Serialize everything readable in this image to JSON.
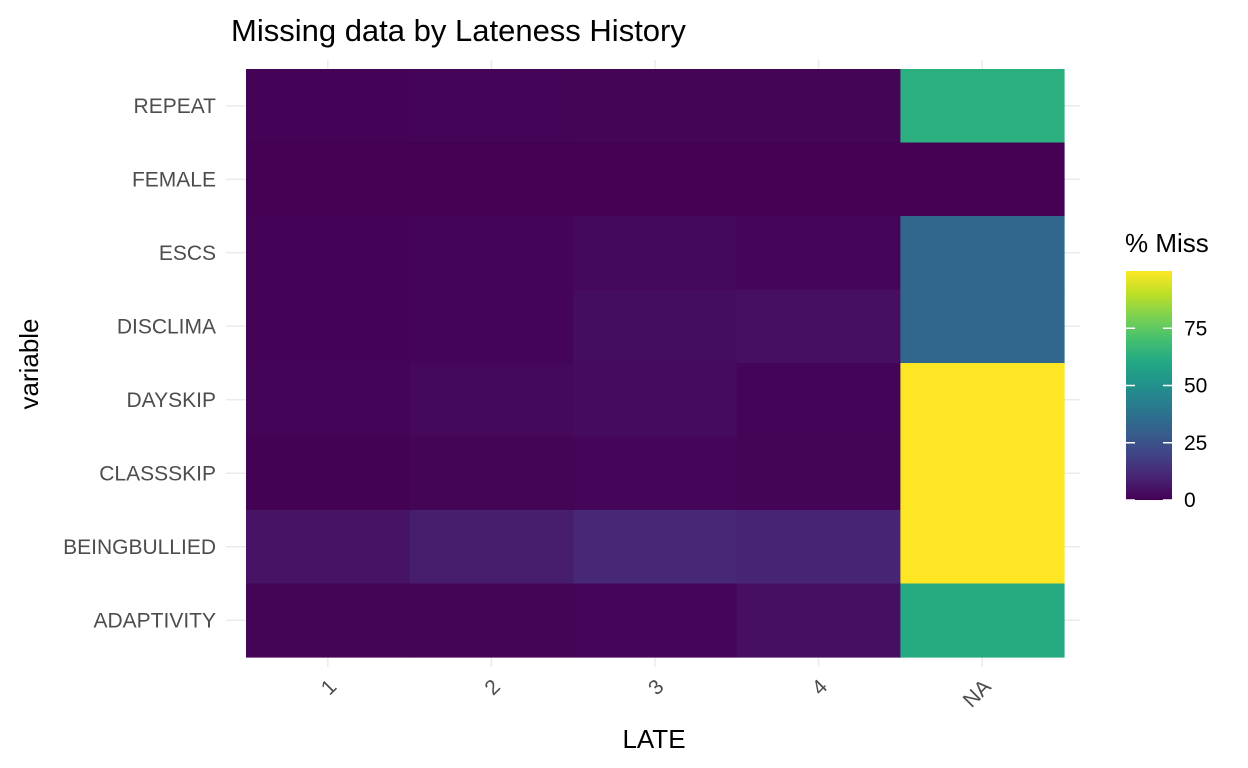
{
  "chart_data": {
    "type": "heatmap",
    "title": "Missing data by Lateness History",
    "xlabel": "LATE",
    "ylabel": "variable",
    "x_categories": [
      "1",
      "2",
      "3",
      "4",
      "NA"
    ],
    "y_categories": [
      "REPEAT",
      "FEMALE",
      "ESCS",
      "DISCLIMA",
      "DAYSKIP",
      "CLASSSKIP",
      "BEINGBULLIED",
      "ADAPTIVITY"
    ],
    "values": [
      [
        0.5,
        0.8,
        1.0,
        1.0,
        63
      ],
      [
        0.0,
        0.0,
        0.0,
        0.0,
        0.0
      ],
      [
        0.6,
        0.9,
        2.0,
        1.5,
        33
      ],
      [
        0.6,
        0.9,
        3.5,
        4.0,
        33
      ],
      [
        0.8,
        2.0,
        3.0,
        0.8,
        100
      ],
      [
        0.3,
        1.0,
        1.5,
        1.0,
        100
      ],
      [
        5.0,
        8.0,
        11.0,
        10.0,
        100
      ],
      [
        1.0,
        1.0,
        1.5,
        4.0,
        61
      ]
    ],
    "legend": {
      "title": "% Miss",
      "ticks": [
        0,
        25,
        50,
        75
      ],
      "range": [
        0,
        100
      ],
      "placement": "right",
      "colormap": "viridis"
    },
    "grid": true
  }
}
